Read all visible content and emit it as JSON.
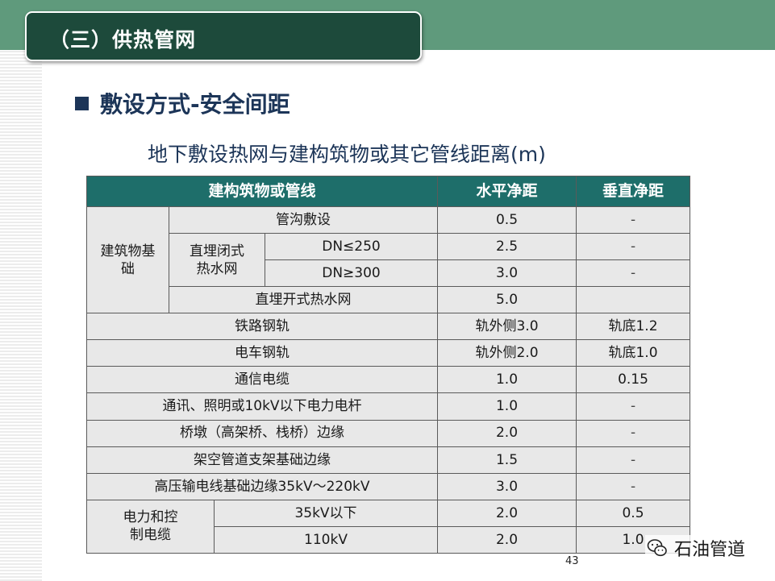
{
  "slide": {
    "section_title": "（三）供热管网",
    "heading": "敷设方式-安全间距",
    "subheading": "地下敷设热网与建构筑物或其它管线距离(m)",
    "page_number": "43",
    "watermark": "石油管道"
  },
  "colors": {
    "header_fill": "#1e6e6a",
    "title_box": "#1d4a3b",
    "top_band": "#5f9a7c",
    "cell_fill": "#e8e8e8",
    "heading_text": "#1c3558"
  },
  "table": {
    "headers": [
      "建构筑物或管线",
      "水平净距",
      "垂直净距"
    ],
    "foundation_group": "建筑物基础",
    "direct_burial_closed": "直埋闭式热水网",
    "power_group": "电力和控制电缆",
    "rows": [
      {
        "label": "管沟敷设",
        "h": "0.5",
        "v": "-"
      },
      {
        "label": "DN≤250",
        "h": "2.5",
        "v": "-"
      },
      {
        "label": "DN≥300",
        "h": "3.0",
        "v": "-"
      },
      {
        "label": "直埋开式热水网",
        "h": "5.0",
        "v": ""
      },
      {
        "label": "铁路钢轨",
        "h": "轨外侧3.0",
        "v": "轨底1.2"
      },
      {
        "label": "电车钢轨",
        "h": "轨外侧2.0",
        "v": "轨底1.0"
      },
      {
        "label": "通信电缆",
        "h": "1.0",
        "v": "0.15"
      },
      {
        "label": "通讯、照明或10kV以下电力电杆",
        "h": "1.0",
        "v": "-"
      },
      {
        "label": "桥墩（高架桥、栈桥）边缘",
        "h": "2.0",
        "v": "-"
      },
      {
        "label": "架空管道支架基础边缘",
        "h": "1.5",
        "v": "-"
      },
      {
        "label": "高压输电线基础边缘35kV～220kV",
        "h": "3.0",
        "v": "-"
      },
      {
        "label": "35kV以下",
        "h": "2.0",
        "v": "0.5"
      },
      {
        "label": "110kV",
        "h": "2.0",
        "v": "1.0"
      }
    ]
  }
}
